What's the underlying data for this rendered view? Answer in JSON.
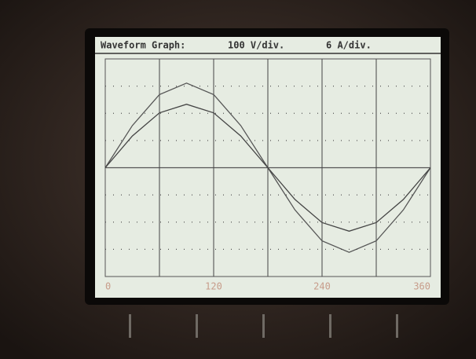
{
  "chart_data": {
    "type": "line",
    "title": "Waveform Graph:",
    "y_label": "100 V/div.",
    "y2_label": "6 A/div.",
    "x": [
      0,
      30,
      60,
      90,
      120,
      150,
      180,
      210,
      240,
      270,
      300,
      330,
      360
    ],
    "xlim": [
      0,
      360
    ],
    "xticks": [
      0,
      120,
      240,
      360
    ],
    "ylim": [
      -400,
      400
    ],
    "y2lim": [
      -24,
      24
    ],
    "series": [
      {
        "color": "#555555",
        "values": [
          0,
          155,
          269,
          311,
          269,
          155,
          0,
          -155,
          -269,
          -311,
          -269,
          -155,
          0
        ]
      },
      {
        "color": "#444444",
        "axis": "y2",
        "values": [
          0,
          7,
          12.1,
          14,
          12.1,
          7,
          0,
          -7,
          -12.1,
          -14,
          -12.1,
          -7,
          0
        ]
      }
    ]
  }
}
